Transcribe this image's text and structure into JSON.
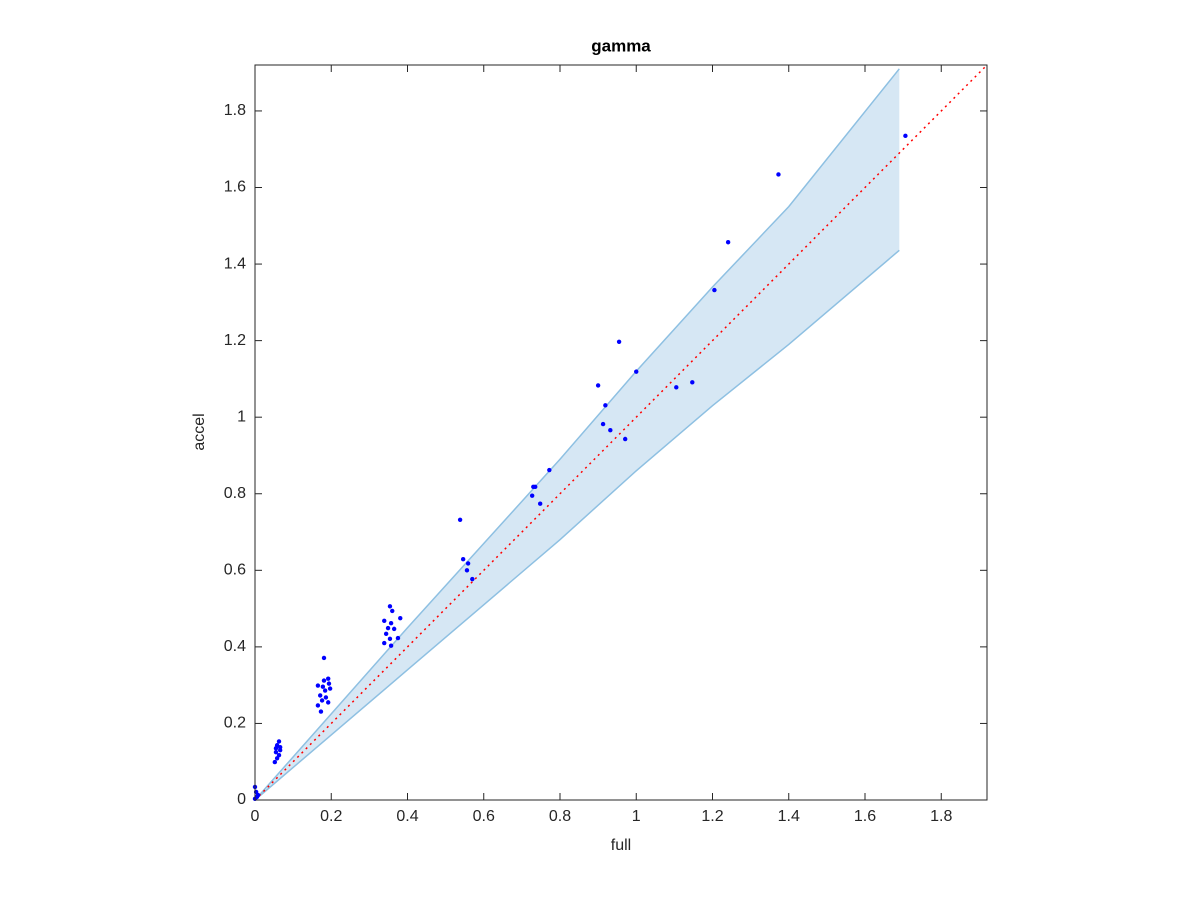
{
  "chart_data": {
    "type": "scatter",
    "title": "gamma",
    "xlabel": "full",
    "ylabel": "accel",
    "xlim": [
      0,
      1.92
    ],
    "ylim": [
      0,
      1.92
    ],
    "xticks": [
      0,
      0.2,
      0.4,
      0.6,
      0.8,
      1,
      1.2,
      1.4,
      1.6,
      1.8
    ],
    "yticks": [
      0,
      0.2,
      0.4,
      0.6,
      0.8,
      1,
      1.2,
      1.4,
      1.6,
      1.8
    ],
    "color": "#0000ff",
    "x": [
      1.706,
      1.373,
      1.241,
      1.205,
      0.955,
      1.0,
      0.9,
      0.919,
      1.105,
      1.147,
      0.913,
      0.932,
      0.971,
      0.772,
      0.73,
      0.735,
      0.727,
      0.748,
      0.538,
      0.546,
      0.559,
      0.556,
      0.57,
      0.354,
      0.36,
      0.339,
      0.381,
      0.357,
      0.349,
      0.365,
      0.344,
      0.354,
      0.375,
      0.339,
      0.357,
      0.181,
      0.165,
      0.178,
      0.192,
      0.184,
      0.197,
      0.171,
      0.186,
      0.176,
      0.192,
      0.165,
      0.173,
      0.194,
      0.181,
      0.063,
      0.058,
      0.066,
      0.055,
      0.063,
      0.058,
      0.052,
      0.066,
      0.055,
      0.0,
      0.003,
      0.005,
      0.0,
      0.008
    ],
    "y": [
      1.735,
      1.634,
      1.457,
      1.332,
      1.197,
      1.119,
      1.083,
      1.031,
      1.078,
      1.091,
      0.982,
      0.966,
      0.943,
      0.862,
      0.818,
      0.818,
      0.795,
      0.774,
      0.732,
      0.629,
      0.618,
      0.6,
      0.577,
      0.506,
      0.494,
      0.468,
      0.475,
      0.462,
      0.449,
      0.447,
      0.434,
      0.421,
      0.423,
      0.41,
      0.403,
      0.371,
      0.299,
      0.296,
      0.317,
      0.286,
      0.291,
      0.273,
      0.268,
      0.26,
      0.255,
      0.247,
      0.231,
      0.304,
      0.312,
      0.153,
      0.143,
      0.13,
      0.125,
      0.117,
      0.109,
      0.099,
      0.138,
      0.135,
      0.034,
      0.021,
      0.008,
      0.003,
      0.013
    ],
    "band": {
      "x": [
        0,
        0.2,
        0.4,
        0.6,
        0.8,
        1.0,
        1.2,
        1.4,
        1.69
      ],
      "upper": [
        0,
        0.225,
        0.45,
        0.67,
        0.89,
        1.12,
        1.34,
        1.55,
        1.91
      ],
      "lower": [
        0,
        0.17,
        0.34,
        0.51,
        0.68,
        0.86,
        1.03,
        1.19,
        1.436
      ],
      "fill": "#d6e7f4",
      "color": "#8ec0e2"
    },
    "identity_line": {
      "color": "#ff0000"
    }
  }
}
